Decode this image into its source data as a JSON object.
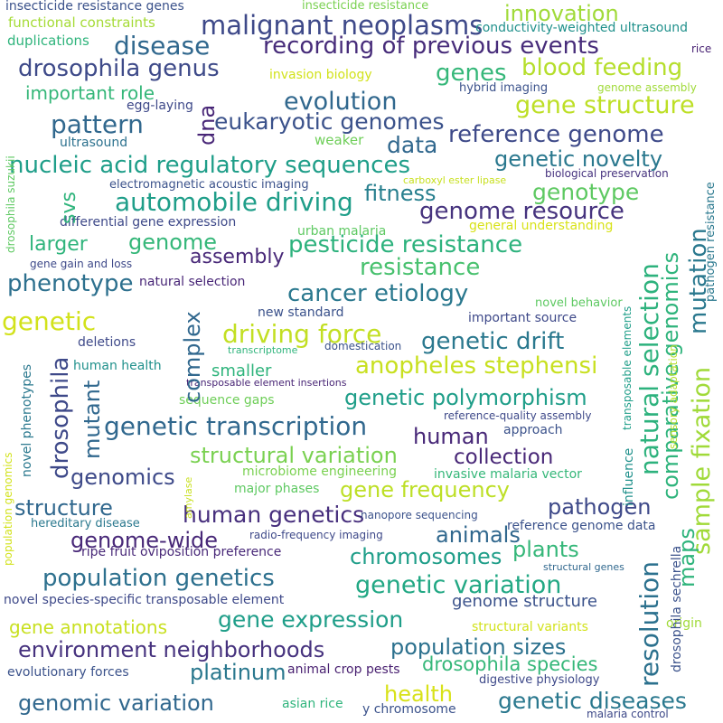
{
  "words": [
    {
      "text": "insecticide resistance genes",
      "color": "#3b528b"
    },
    {
      "text": "insecticide resistance",
      "color": "#7ad151"
    },
    {
      "text": "innovation",
      "color": "#a0da39"
    },
    {
      "text": "malignant neoplasms",
      "color": "#3e4989"
    },
    {
      "text": "functional constraints",
      "color": "#a5db36"
    },
    {
      "text": "conductivity-weighted ultrasound",
      "color": "#21918c"
    },
    {
      "text": "duplications",
      "color": "#2fb47c"
    },
    {
      "text": "disease",
      "color": "#31688e"
    },
    {
      "text": "recording of previous events",
      "color": "#472c7a"
    },
    {
      "text": "rice",
      "color": "#482173"
    },
    {
      "text": "drosophila genus",
      "color": "#3e4a89"
    },
    {
      "text": "genes",
      "color": "#35b779"
    },
    {
      "text": "blood feeding",
      "color": "#b5de2b"
    },
    {
      "text": "invasion biology",
      "color": "#d2e21b"
    },
    {
      "text": "hybrid imaging",
      "color": "#3b528b"
    },
    {
      "text": "genome assembly",
      "color": "#a0da39"
    },
    {
      "text": "important role",
      "color": "#35b779"
    },
    {
      "text": "evolution",
      "color": "#31688e"
    },
    {
      "text": "gene structure",
      "color": "#bddf26"
    },
    {
      "text": "egg-laying",
      "color": "#3e4989"
    },
    {
      "text": "pattern",
      "color": "#31688e"
    },
    {
      "text": "eukaryotic genomes",
      "color": "#3b528b"
    },
    {
      "text": "dna",
      "color": "#482677"
    },
    {
      "text": "reference genome",
      "color": "#3e4a89"
    },
    {
      "text": "ultrasound",
      "color": "#2c718e"
    },
    {
      "text": "weaker",
      "color": "#6ece58"
    },
    {
      "text": "data",
      "color": "#31688e"
    },
    {
      "text": "biological preservation",
      "color": "#46327e"
    },
    {
      "text": "genetic novelty",
      "color": "#2a788e"
    },
    {
      "text": "nucleic acid regulatory sequences",
      "color": "#1f9e89"
    },
    {
      "text": "carboxyl ester lipase",
      "color": "#c8e020"
    },
    {
      "text": "electromagnetic acoustic imaging",
      "color": "#3b528b"
    },
    {
      "text": "fitness",
      "color": "#277f8e"
    },
    {
      "text": "genotype",
      "color": "#5ec962"
    },
    {
      "text": "automobile driving",
      "color": "#1f9e89"
    },
    {
      "text": "genome resource",
      "color": "#46337e"
    },
    {
      "text": "differential gene expression",
      "color": "#3e4989"
    },
    {
      "text": "general understanding",
      "color": "#d8e219"
    },
    {
      "text": "larger",
      "color": "#2fb47c"
    },
    {
      "text": "genome",
      "color": "#35b779"
    },
    {
      "text": "urban malaria",
      "color": "#5ec962"
    },
    {
      "text": "pesticide resistance",
      "color": "#2db27d"
    },
    {
      "text": "assembly",
      "color": "#482878"
    },
    {
      "text": "gene gain and loss",
      "color": "#3e4989"
    },
    {
      "text": "resistance",
      "color": "#48c16e"
    },
    {
      "text": "phenotype",
      "color": "#2d708e"
    },
    {
      "text": "natural selection",
      "color": "#482677"
    },
    {
      "text": "novel behavior",
      "color": "#5ec962"
    },
    {
      "text": "cancer etiology",
      "color": "#2a788e"
    },
    {
      "text": "genetic",
      "color": "#d2e21b"
    },
    {
      "text": "new standard",
      "color": "#3b528b"
    },
    {
      "text": "important source",
      "color": "#3e4989"
    },
    {
      "text": "driving force",
      "color": "#c2df23"
    },
    {
      "text": "deletions",
      "color": "#3e4989"
    },
    {
      "text": "transcriptome",
      "color": "#2fb47c"
    },
    {
      "text": "domestication",
      "color": "#3b528b"
    },
    {
      "text": "genetic drift",
      "color": "#2a788e"
    },
    {
      "text": "anopheles stephensi",
      "color": "#c8e020"
    },
    {
      "text": "human health",
      "color": "#21918c"
    },
    {
      "text": "smaller",
      "color": "#2fb47c"
    },
    {
      "text": "transposable element insertions",
      "color": "#482575"
    },
    {
      "text": "sequence gaps",
      "color": "#6ece58"
    },
    {
      "text": "genetic polymorphism",
      "color": "#1f9e89"
    },
    {
      "text": "reference-quality assembly",
      "color": "#3e4989"
    },
    {
      "text": "genetic transcription",
      "color": "#31688e"
    },
    {
      "text": "human",
      "color": "#482878"
    },
    {
      "text": "approach",
      "color": "#3b528b"
    },
    {
      "text": "structural variation",
      "color": "#7ad151"
    },
    {
      "text": "collection",
      "color": "#482777"
    },
    {
      "text": "genomics",
      "color": "#3e4a89"
    },
    {
      "text": "microbiome engineering",
      "color": "#7ad151"
    },
    {
      "text": "invasive malaria vector",
      "color": "#35b779"
    },
    {
      "text": "gene frequency",
      "color": "#bddf26"
    },
    {
      "text": "major phases",
      "color": "#5ec962"
    },
    {
      "text": "structure",
      "color": "#31688e"
    },
    {
      "text": "human genetics",
      "color": "#472f7d"
    },
    {
      "text": "pathogen",
      "color": "#3e4989"
    },
    {
      "text": "hereditary disease",
      "color": "#2a788e"
    },
    {
      "text": "nanopore sequencing",
      "color": "#3b528b"
    },
    {
      "text": "genome-wide",
      "color": "#482878"
    },
    {
      "text": "radio-frequency imaging",
      "color": "#3e4989"
    },
    {
      "text": "animals",
      "color": "#31688e"
    },
    {
      "text": "reference genome data",
      "color": "#3b528b"
    },
    {
      "text": "ripe fruit oviposition preference",
      "color": "#482878"
    },
    {
      "text": "chromosomes",
      "color": "#1f9e89"
    },
    {
      "text": "plants",
      "color": "#35b779"
    },
    {
      "text": "structural genes",
      "color": "#31688e"
    },
    {
      "text": "population genetics",
      "color": "#2d708e"
    },
    {
      "text": "genetic variation",
      "color": "#22a884"
    },
    {
      "text": "novel species-specific transposable element",
      "color": "#3e4989"
    },
    {
      "text": "genome structure",
      "color": "#3b528b"
    },
    {
      "text": "gene annotations",
      "color": "#c8e020"
    },
    {
      "text": "gene expression",
      "color": "#1f9e89"
    },
    {
      "text": "structural variants",
      "color": "#d2e21b"
    },
    {
      "text": "origin",
      "color": "#a0da39"
    },
    {
      "text": "environment neighborhoods",
      "color": "#46327e"
    },
    {
      "text": "population sizes",
      "color": "#2c718e"
    },
    {
      "text": "platinum",
      "color": "#2a788e"
    },
    {
      "text": "animal crop pests",
      "color": "#481f70"
    },
    {
      "text": "drosophila species",
      "color": "#35b779"
    },
    {
      "text": "evolutionary forces",
      "color": "#3b528b"
    },
    {
      "text": "digestive physiology",
      "color": "#3e4989"
    },
    {
      "text": "health",
      "color": "#d8e219"
    },
    {
      "text": "genomic variation",
      "color": "#31688e"
    },
    {
      "text": "asian rice",
      "color": "#2fb47c"
    },
    {
      "text": "y chromosome",
      "color": "#3b528b"
    },
    {
      "text": "genetic diseases",
      "color": "#2a788e"
    },
    {
      "text": "malaria control",
      "color": "#3e4989"
    },
    {
      "text": "svs",
      "color": "#2fb47c"
    },
    {
      "text": "drosophila suzukii",
      "color": "#5ec962"
    },
    {
      "text": "complex",
      "color": "#31688e"
    },
    {
      "text": "drosophila",
      "color": "#3e4989"
    },
    {
      "text": "mutant",
      "color": "#31688e"
    },
    {
      "text": "novel phenotypes",
      "color": "#2a788e"
    },
    {
      "text": "population genomics",
      "color": "#d2e21b"
    },
    {
      "text": "amylase",
      "color": "#c8e020"
    },
    {
      "text": "natural selection",
      "color": "#2db27d"
    },
    {
      "text": "comparative genomics",
      "color": "#2fb47c"
    },
    {
      "text": "mutation",
      "color": "#2a788e"
    },
    {
      "text": "sample fixation",
      "color": "#a0da39"
    },
    {
      "text": "pathogen resistance",
      "color": "#2a788e"
    },
    {
      "text": "transposable elements",
      "color": "#1f9e89"
    },
    {
      "text": "sensory adaptation",
      "color": "#b5de2b"
    },
    {
      "text": "influence",
      "color": "#21918c"
    },
    {
      "text": "resolution",
      "color": "#2c718e"
    },
    {
      "text": "maps",
      "color": "#2fb47c"
    },
    {
      "text": "drosophila sechrella",
      "color": "#3b528b"
    }
  ]
}
